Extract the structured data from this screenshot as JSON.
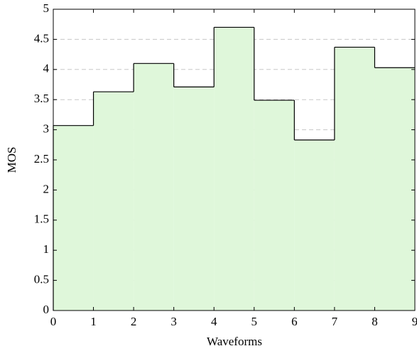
{
  "chart_data": {
    "type": "histogram",
    "x_label": "Waveforms",
    "y_label": "MOS",
    "bins": [
      0,
      1,
      2,
      3,
      4,
      5,
      6,
      7,
      8,
      9
    ],
    "values": [
      3.07,
      3.63,
      4.1,
      3.71,
      4.7,
      3.49,
      2.83,
      4.37,
      4.03
    ],
    "color": "#dff7da",
    "edge_color": "#000000",
    "xlim": [
      0,
      9
    ],
    "xticks": [
      0,
      1,
      2,
      3,
      4,
      5,
      6,
      7,
      8,
      9
    ],
    "ylim": [
      0,
      5
    ],
    "yticks": [
      0,
      0.5,
      1,
      1.5,
      2,
      2.5,
      3,
      3.5,
      4,
      4.5,
      5
    ],
    "grid": true
  }
}
